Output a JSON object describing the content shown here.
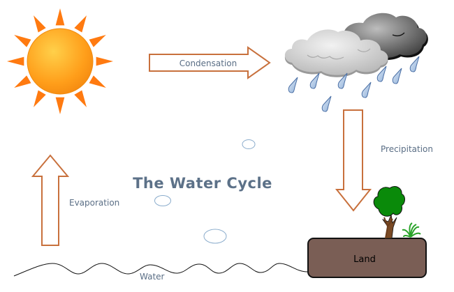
{
  "title": "The Water Cycle",
  "labels": {
    "condensation": "Condensation",
    "precipitation": "Precipitation",
    "evaporation": "Evaporation",
    "water": "Water",
    "land": "Land"
  },
  "colors": {
    "arrow_stroke": "#c8703c",
    "title": "#5c7188",
    "label": "#5a6e85",
    "land_fill": "#7a5e55",
    "sun": "#ff9a1a",
    "rays": "#ff7a10",
    "raindrop": "#a9c4e4",
    "bubble": "#8aaccc"
  },
  "icons": [
    "sun-icon",
    "cloud-light-icon",
    "cloud-dark-icon",
    "raindrop-icon",
    "tree-icon",
    "palm-plant-icon"
  ]
}
